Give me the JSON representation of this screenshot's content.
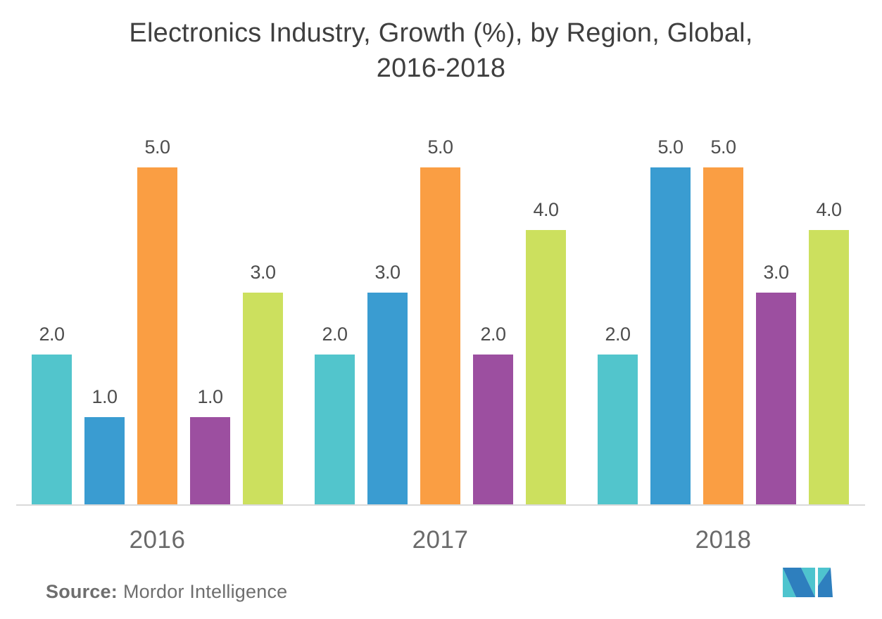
{
  "title": {
    "line1": "Electronics Industry, Growth (%), by Region, Global,",
    "line2": "2016-2018"
  },
  "source": {
    "label": "Source:",
    "value": "Mordor Intelligence"
  },
  "logo": {
    "name": "mordor-intelligence-logo",
    "teal": "#4ec4ce",
    "blue": "#2e7fbe"
  },
  "colors": {
    "axis_line": "#d9d9d9",
    "title_text": "#3f3f3f",
    "bar_label_text": "#4d4d4d",
    "x_label_text": "#6a6a6a",
    "source_text": "#6e6e6e"
  },
  "chart_data": {
    "type": "bar",
    "title": "Electronics Industry, Growth (%), by Region, Global, 2016-2018",
    "categories": [
      "2016",
      "2017",
      "2018"
    ],
    "series": [
      {
        "name": "teal",
        "color": "#52c5cc",
        "values": [
          2.0,
          2.0,
          2.0
        ]
      },
      {
        "name": "blue",
        "color": "#3a9cd1",
        "values": [
          1.0,
          3.0,
          5.0
        ]
      },
      {
        "name": "orange",
        "color": "#fa9e43",
        "values": [
          5.0,
          5.0,
          5.0
        ]
      },
      {
        "name": "purple",
        "color": "#9c4fa0",
        "values": [
          1.0,
          2.0,
          3.0
        ]
      },
      {
        "name": "green",
        "color": "#cce05e",
        "values": [
          3.0,
          4.0,
          4.0
        ]
      }
    ],
    "data_labels": [
      "2.0",
      "1.0",
      "5.0",
      "1.0",
      "3.0",
      "2.0",
      "3.0",
      "5.0",
      "2.0",
      "4.0",
      "2.0",
      "5.0",
      "5.0",
      "3.0",
      "4.0"
    ],
    "label_format": "one_decimal",
    "xlabel": "",
    "ylabel": "",
    "ylim": [
      0,
      5.5
    ],
    "grid": false,
    "legend": false,
    "y_axis_visible": false
  }
}
